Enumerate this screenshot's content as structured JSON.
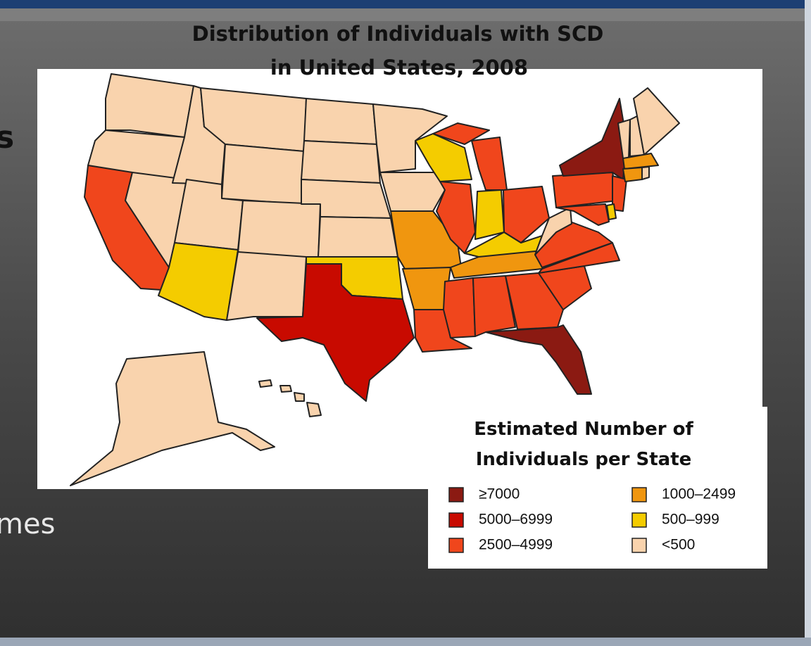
{
  "slide": {
    "left_fragments": [
      "s",
      "mes"
    ]
  },
  "map": {
    "title": [
      "Distribution of Individuals with SCD",
      "in United States, 2008"
    ],
    "legend": {
      "title": [
        "Estimated Number of",
        "Individuals per State"
      ],
      "items": [
        {
          "label": "≥7000",
          "color": "#8b1a12"
        },
        {
          "label": "5000–6999",
          "color": "#c80a00"
        },
        {
          "label": "2500–4999",
          "color": "#f0461c"
        },
        {
          "label": "1000–2499",
          "color": "#f0960f"
        },
        {
          "label": "500–999",
          "color": "#f4cc00"
        },
        {
          "label": "<500",
          "color": "#f9d3ad"
        }
      ]
    }
  }
}
